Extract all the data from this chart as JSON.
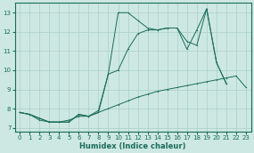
{
  "xlabel": "Humidex (Indice chaleur)",
  "xlim": [
    -0.5,
    23.5
  ],
  "ylim": [
    6.8,
    13.5
  ],
  "yticks": [
    7,
    8,
    9,
    10,
    11,
    12,
    13
  ],
  "xticks": [
    0,
    1,
    2,
    3,
    4,
    5,
    6,
    7,
    8,
    9,
    10,
    11,
    12,
    13,
    14,
    15,
    16,
    17,
    18,
    19,
    20,
    21,
    22,
    23
  ],
  "bg_color": "#cde8e2",
  "grid_color": "#aacfc8",
  "line_color": "#1a6b5a",
  "line1_x": [
    0,
    1,
    2,
    3,
    4,
    5,
    6,
    7,
    8,
    9,
    10,
    11,
    12,
    13,
    14,
    15,
    16,
    17,
    18,
    19,
    20,
    21
  ],
  "line1_y": [
    7.8,
    7.7,
    7.5,
    7.3,
    7.3,
    7.3,
    7.7,
    7.6,
    7.8,
    9.8,
    13.0,
    13.0,
    12.6,
    12.2,
    12.1,
    12.2,
    12.2,
    11.1,
    12.1,
    13.2,
    10.4,
    9.3
  ],
  "line2_x": [
    0,
    1,
    2,
    3,
    4,
    5,
    6,
    7,
    8,
    9,
    10,
    11,
    12,
    13,
    14,
    15,
    16,
    17,
    18,
    19,
    20,
    21
  ],
  "line2_y": [
    7.8,
    7.7,
    7.5,
    7.3,
    7.3,
    7.3,
    7.7,
    7.6,
    7.9,
    9.8,
    10.0,
    11.1,
    11.9,
    12.1,
    12.1,
    12.2,
    12.2,
    11.5,
    11.3,
    13.2,
    10.4,
    9.3
  ],
  "line3_x": [
    0,
    1,
    2,
    3,
    4,
    5,
    6,
    7,
    8,
    9,
    10,
    11,
    12,
    13,
    14,
    15,
    16,
    17,
    18,
    19,
    20,
    21,
    22,
    23
  ],
  "line3_y": [
    7.8,
    7.7,
    7.4,
    7.3,
    7.3,
    7.4,
    7.6,
    7.6,
    7.8,
    8.0,
    8.2,
    8.4,
    8.6,
    8.75,
    8.9,
    9.0,
    9.1,
    9.2,
    9.3,
    9.4,
    9.5,
    9.6,
    9.7,
    9.1
  ]
}
